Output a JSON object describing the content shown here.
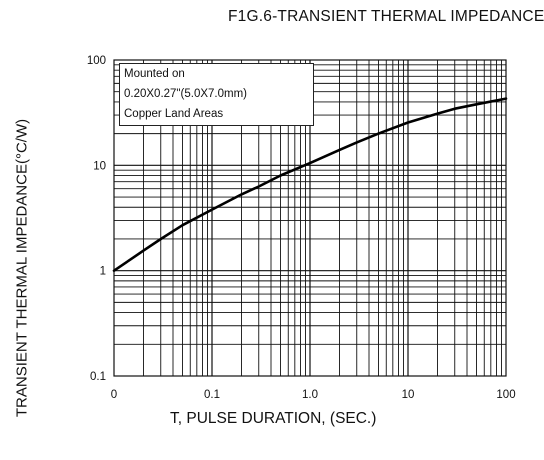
{
  "chart_data": {
    "type": "line",
    "title": "F1G.6-TRANSIENT THERMAL IMPEDANCE",
    "xlabel": "T, PULSE DURATION, (SEC.)",
    "ylabel": "TRANSIENT THERMAL IMPEDANCE(°C/W)",
    "x_scale": "log",
    "y_scale": "log",
    "xlim": [
      0.01,
      100
    ],
    "ylim": [
      0.1,
      100
    ],
    "x_ticks": [
      "0",
      "0.1",
      "1.0",
      "10",
      "100"
    ],
    "y_ticks": [
      "0.1",
      "1",
      "10",
      "100"
    ],
    "grid": true,
    "annotation": [
      "Mounted on",
      "0.20X0.27\"(5.0X7.0mm)",
      "Copper Land Areas"
    ],
    "series": [
      {
        "x": [
          0.01,
          0.02,
          0.03,
          0.05,
          0.1,
          0.2,
          0.3,
          0.5,
          1,
          2,
          3,
          5,
          10,
          20,
          30,
          50,
          100
        ],
        "y": [
          1.0,
          1.55,
          2.0,
          2.7,
          3.8,
          5.3,
          6.3,
          8.0,
          10.5,
          14.0,
          16.5,
          20.0,
          25.5,
          31.0,
          34.5,
          38.0,
          43.0
        ]
      }
    ]
  }
}
